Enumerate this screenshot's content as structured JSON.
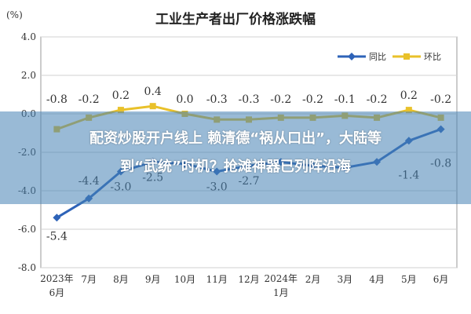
{
  "chart_data": {
    "type": "line",
    "title": "工业生产者出厂价格涨跌幅",
    "unit_label": "(%)",
    "categories": [
      "2023年6月",
      "7月",
      "8月",
      "9月",
      "10月",
      "11月",
      "12月",
      "2024年1月",
      "2月",
      "3月",
      "4月",
      "5月",
      "6月"
    ],
    "tick_labels": [
      [
        "2023年",
        "6月"
      ],
      [
        "7月"
      ],
      [
        "8月"
      ],
      [
        "9月"
      ],
      [
        "10月"
      ],
      [
        "11月"
      ],
      [
        "12月"
      ],
      [
        "2024年",
        "1月"
      ],
      [
        "2月"
      ],
      [
        "3月"
      ],
      [
        "4月"
      ],
      [
        "5月"
      ],
      [
        "6月"
      ]
    ],
    "ylim": [
      -8.0,
      4.0
    ],
    "yticks": [
      "4.0",
      "2.0",
      "0.0",
      "-2.0",
      "-4.0",
      "-6.0",
      "-8.0"
    ],
    "grid": true,
    "legend_position": "top-right",
    "series": [
      {
        "name": "同比",
        "color": "#2e63b8",
        "values": [
          -5.4,
          -4.4,
          -3.0,
          -2.5,
          -2.6,
          -3.0,
          -2.7,
          -2.5,
          -2.7,
          -2.8,
          -2.5,
          -1.4,
          -0.8
        ],
        "labels": [
          "-5.4",
          "-4.4",
          "-3.0",
          "-2.5",
          "",
          "-3.0",
          "-2.7",
          "",
          "",
          "",
          "",
          "-1.4",
          "-0.8"
        ]
      },
      {
        "name": "环比",
        "color": "#e9c12a",
        "values": [
          -0.8,
          -0.2,
          0.2,
          0.4,
          0.0,
          -0.3,
          -0.3,
          -0.2,
          -0.2,
          -0.1,
          -0.2,
          0.2,
          -0.2
        ],
        "labels": [
          "-0.8",
          "-0.2",
          "0.2",
          "0.4",
          "0.0",
          "-0.3",
          "-0.3",
          "-0.2",
          "-0.2",
          "-0.1",
          "-0.2",
          "0.2",
          "-0.2"
        ]
      }
    ]
  },
  "overlay": {
    "line1": "配资炒股开户线上 赖清德“祸从口出”，大陆等",
    "line2": "到“武统”时机？抢滩神器已列阵沿海"
  }
}
